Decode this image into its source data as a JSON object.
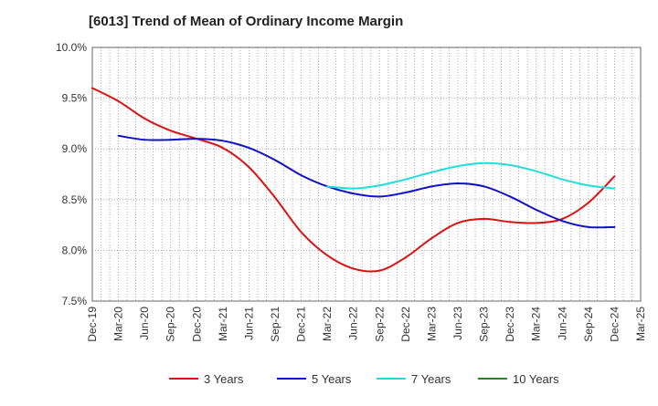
{
  "chart_data": {
    "type": "line",
    "title": "[6013]  Trend of Mean of Ordinary Income Margin",
    "xlabel": "",
    "ylabel": "",
    "x_ticks": [
      "Dec-19",
      "Mar-20",
      "Jun-20",
      "Sep-20",
      "Dec-20",
      "Mar-21",
      "Jun-21",
      "Sep-21",
      "Dec-21",
      "Mar-22",
      "Jun-22",
      "Sep-22",
      "Dec-22",
      "Mar-23",
      "Jun-23",
      "Sep-23",
      "Dec-23",
      "Mar-24",
      "Jun-24",
      "Sep-24",
      "Dec-24",
      "Mar-25"
    ],
    "y_ticks": [
      "7.5%",
      "8.0%",
      "8.5%",
      "9.0%",
      "9.5%",
      "10.0%"
    ],
    "ylim": [
      7.5,
      10.0
    ],
    "grid": true,
    "legend_position": "bottom",
    "series": [
      {
        "name": "3 Years",
        "color": "#dd1111",
        "x": [
          "Dec-19",
          "Mar-20",
          "Jun-20",
          "Sep-20",
          "Dec-20",
          "Mar-21",
          "Jun-21",
          "Sep-21",
          "Dec-21",
          "Mar-22",
          "Jun-22",
          "Sep-22",
          "Dec-22",
          "Mar-23",
          "Jun-23",
          "Sep-23",
          "Dec-23",
          "Mar-24",
          "Jun-24",
          "Sep-24",
          "Dec-24"
        ],
        "values": [
          9.6,
          9.47,
          9.3,
          9.18,
          9.1,
          9.01,
          8.82,
          8.52,
          8.18,
          7.95,
          7.82,
          7.8,
          7.93,
          8.12,
          8.27,
          8.31,
          8.28,
          8.27,
          8.31,
          8.47,
          8.73
        ]
      },
      {
        "name": "5 Years",
        "color": "#1111cc",
        "x": [
          "Mar-20",
          "Jun-20",
          "Sep-20",
          "Dec-20",
          "Mar-21",
          "Jun-21",
          "Sep-21",
          "Dec-21",
          "Mar-22",
          "Jun-22",
          "Sep-22",
          "Dec-22",
          "Mar-23",
          "Jun-23",
          "Sep-23",
          "Dec-23",
          "Mar-24",
          "Jun-24",
          "Sep-24",
          "Dec-24"
        ],
        "values": [
          9.13,
          9.09,
          9.09,
          9.1,
          9.08,
          9.01,
          8.89,
          8.74,
          8.63,
          8.56,
          8.53,
          8.57,
          8.63,
          8.66,
          8.63,
          8.53,
          8.4,
          8.29,
          8.23,
          8.23
        ]
      },
      {
        "name": "7 Years",
        "color": "#22dddd",
        "x": [
          "Mar-22",
          "Jun-22",
          "Sep-22",
          "Dec-22",
          "Mar-23",
          "Jun-23",
          "Sep-23",
          "Dec-23",
          "Mar-24",
          "Jun-24",
          "Sep-24",
          "Dec-24"
        ],
        "values": [
          8.63,
          8.61,
          8.64,
          8.7,
          8.77,
          8.83,
          8.86,
          8.84,
          8.78,
          8.7,
          8.64,
          8.61
        ]
      },
      {
        "name": "10 Years",
        "color": "#228822",
        "x": [],
        "values": []
      }
    ]
  }
}
